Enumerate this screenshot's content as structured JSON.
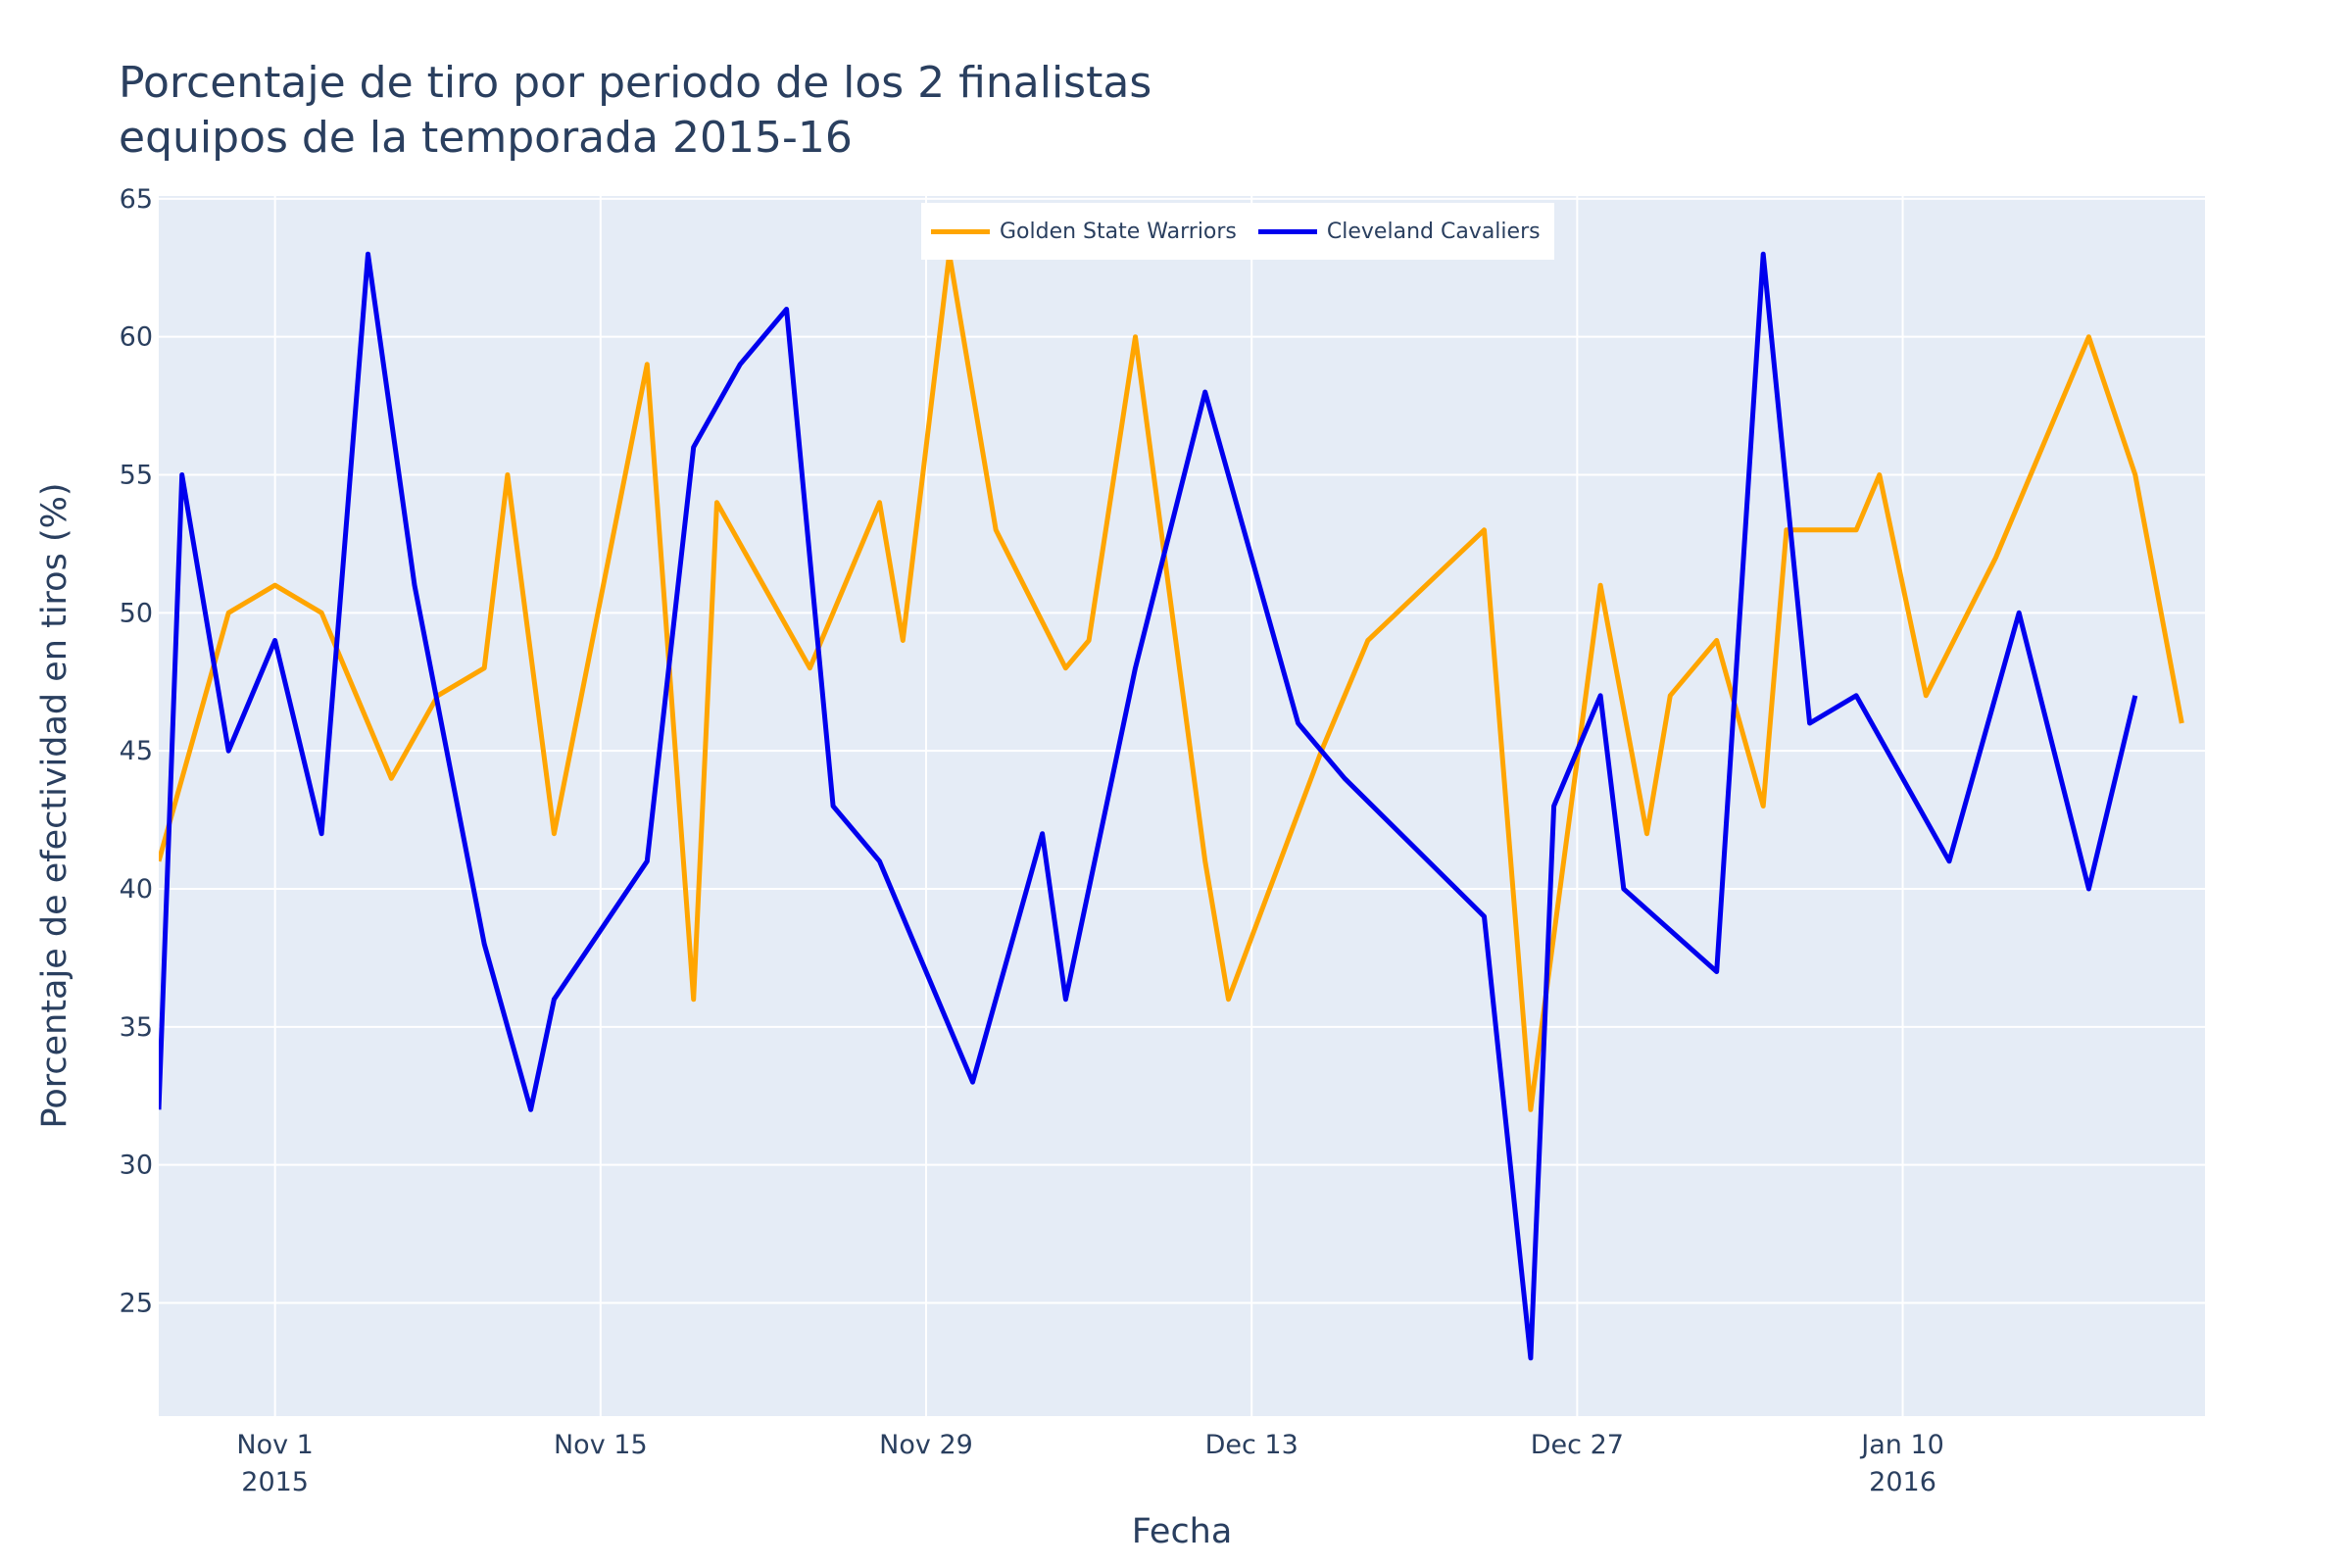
{
  "chart_data": {
    "type": "line",
    "title": [
      "Porcentaje de tiro por periodo de los 2 finalistas",
      "equipos de la temporada 2015-16"
    ],
    "xlabel": "Fecha",
    "ylabel": "Porcentaje de efectividad en tiros (%)",
    "x_range": [
      "2015-10-27",
      "2016-01-23"
    ],
    "ylim": [
      20.9,
      65.1
    ],
    "y_ticks": [
      25,
      30,
      35,
      40,
      45,
      50,
      55,
      60,
      65
    ],
    "x_ticks": [
      {
        "date": "2015-11-01",
        "label": "Nov 1",
        "sublabel": "2015"
      },
      {
        "date": "2015-11-15",
        "label": "Nov 15",
        "sublabel": ""
      },
      {
        "date": "2015-11-29",
        "label": "Nov 29",
        "sublabel": ""
      },
      {
        "date": "2015-12-13",
        "label": "Dec 13",
        "sublabel": ""
      },
      {
        "date": "2015-12-27",
        "label": "Dec 27",
        "sublabel": ""
      },
      {
        "date": "2016-01-10",
        "label": "Jan 10",
        "sublabel": "2016"
      }
    ],
    "grid": true,
    "legend_position": "top-center",
    "background_color": "#e5ecf6",
    "series": [
      {
        "name": "Golden State Warriors",
        "color": "#ffa500",
        "x": [
          "2015-10-27",
          "2015-10-30",
          "2015-11-01",
          "2015-11-03",
          "2015-11-06",
          "2015-11-08",
          "2015-11-10",
          "2015-11-11",
          "2015-11-13",
          "2015-11-17",
          "2015-11-19",
          "2015-11-20",
          "2015-11-24",
          "2015-11-27",
          "2015-11-28",
          "2015-11-30",
          "2015-12-02",
          "2015-12-05",
          "2015-12-06",
          "2015-12-08",
          "2015-12-11",
          "2015-12-12",
          "2015-12-16",
          "2015-12-18",
          "2015-12-23",
          "2015-12-25",
          "2015-12-28",
          "2015-12-30",
          "2015-12-31",
          "2016-01-02",
          "2016-01-04",
          "2016-01-05",
          "2016-01-08",
          "2016-01-09",
          "2016-01-11",
          "2016-01-14",
          "2016-01-18",
          "2016-01-20",
          "2016-01-22"
        ],
        "values": [
          41,
          50,
          51,
          50,
          44,
          47,
          48,
          55,
          42,
          59,
          36,
          54,
          48,
          54,
          49,
          63,
          53,
          48,
          49,
          60,
          41,
          36,
          45,
          49,
          53,
          32,
          51,
          42,
          47,
          49,
          43,
          53,
          53,
          55,
          47,
          52,
          60,
          55,
          46
        ]
      },
      {
        "name": "Cleveland Cavaliers",
        "color": "#0000ee",
        "x": [
          "2015-10-27",
          "2015-10-28",
          "2015-10-30",
          "2015-11-01",
          "2015-11-03",
          "2015-11-05",
          "2015-11-07",
          "2015-11-10",
          "2015-11-12",
          "2015-11-13",
          "2015-11-17",
          "2015-11-19",
          "2015-11-21",
          "2015-11-23",
          "2015-11-25",
          "2015-11-27",
          "2015-12-01",
          "2015-12-04",
          "2015-12-05",
          "2015-12-08",
          "2015-12-11",
          "2015-12-15",
          "2015-12-17",
          "2015-12-23",
          "2015-12-25",
          "2015-12-26",
          "2015-12-28",
          "2015-12-29",
          "2016-01-02",
          "2016-01-04",
          "2016-01-06",
          "2016-01-08",
          "2016-01-12",
          "2016-01-15",
          "2016-01-18",
          "2016-01-20"
        ],
        "values": [
          32,
          55,
          45,
          49,
          42,
          63,
          51,
          38,
          32,
          36,
          41,
          56,
          59,
          61,
          43,
          41,
          33,
          42,
          36,
          48,
          58,
          46,
          44,
          39,
          23,
          43,
          47,
          40,
          37,
          63,
          46,
          47,
          41,
          50,
          40,
          47
        ]
      }
    ]
  }
}
